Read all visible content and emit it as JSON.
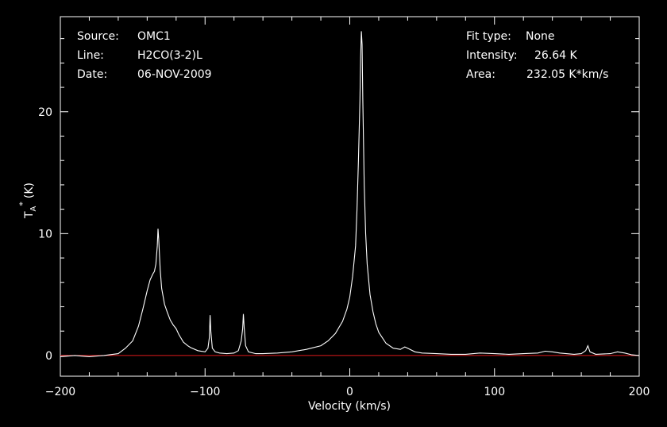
{
  "info": {
    "source_label": "Source:",
    "source_value": "OMC1",
    "line_label": "Line:",
    "line_value": "H2CO(3-2)L",
    "date_label": "Date:",
    "date_value": "06-NOV-2009",
    "fit_label": "Fit type:",
    "fit_value": "None",
    "intensity_label": "Intensity:",
    "intensity_value": "26.64 K",
    "area_label": "Area:",
    "area_value": "232.05 K*km/s"
  },
  "colors": {
    "background": "#000000",
    "axes": "#ffffff",
    "spectrum": "#ffffff",
    "baseline": "#e0191b"
  },
  "chart_data": {
    "type": "line",
    "xlabel": "Velocity (km/s)",
    "ylabel_main": "T",
    "ylabel_sub": "A",
    "ylabel_sup": "*",
    "ylabel_unit": "(K)",
    "xlim": [
      -200,
      200
    ],
    "ylim": [
      -1.7,
      27.8
    ],
    "x_ticks": [
      -200,
      -100,
      0,
      100,
      200
    ],
    "x_tick_labels": [
      "−200",
      "−100",
      "0",
      "100",
      "200"
    ],
    "y_ticks": [
      0,
      10,
      20
    ],
    "y_tick_labels": [
      "0",
      "10",
      "20"
    ],
    "grid": false,
    "series": [
      {
        "points": [
          [
            -200,
            -0.1
          ],
          [
            -190,
            0.0
          ],
          [
            -180,
            -0.1
          ],
          [
            -170,
            0.0
          ],
          [
            -160,
            0.15
          ],
          [
            -155,
            0.6
          ],
          [
            -150,
            1.2
          ],
          [
            -146,
            2.4
          ],
          [
            -143,
            3.8
          ],
          [
            -140,
            5.3
          ],
          [
            -138,
            6.2
          ],
          [
            -136,
            6.7
          ],
          [
            -135,
            6.9
          ],
          [
            -134,
            7.5
          ],
          [
            -133,
            9.0
          ],
          [
            -132.5,
            10.4
          ],
          [
            -132,
            9.5
          ],
          [
            -131,
            7.0
          ],
          [
            -130,
            5.5
          ],
          [
            -128,
            4.2
          ],
          [
            -126,
            3.5
          ],
          [
            -124,
            2.9
          ],
          [
            -122,
            2.5
          ],
          [
            -120,
            2.2
          ],
          [
            -118,
            1.7
          ],
          [
            -115,
            1.1
          ],
          [
            -112,
            0.8
          ],
          [
            -110,
            0.65
          ],
          [
            -105,
            0.4
          ],
          [
            -100,
            0.3
          ],
          [
            -98,
            0.6
          ],
          [
            -97,
            1.5
          ],
          [
            -96.5,
            3.3
          ],
          [
            -96,
            2.0
          ],
          [
            -95,
            0.6
          ],
          [
            -93,
            0.3
          ],
          [
            -90,
            0.2
          ],
          [
            -85,
            0.15
          ],
          [
            -80,
            0.2
          ],
          [
            -77,
            0.4
          ],
          [
            -75,
            1.2
          ],
          [
            -74,
            2.2
          ],
          [
            -73.5,
            3.4
          ],
          [
            -73,
            2.3
          ],
          [
            -72,
            0.8
          ],
          [
            -70,
            0.3
          ],
          [
            -65,
            0.15
          ],
          [
            -60,
            0.15
          ],
          [
            -50,
            0.2
          ],
          [
            -40,
            0.3
          ],
          [
            -30,
            0.5
          ],
          [
            -20,
            0.8
          ],
          [
            -15,
            1.2
          ],
          [
            -10,
            1.8
          ],
          [
            -5,
            2.8
          ],
          [
            -2,
            3.8
          ],
          [
            0,
            4.8
          ],
          [
            2,
            6.5
          ],
          [
            4,
            9.0
          ],
          [
            5,
            12.0
          ],
          [
            6,
            16.0
          ],
          [
            7,
            21.0
          ],
          [
            7.5,
            24.5
          ],
          [
            8,
            26.6
          ],
          [
            8.5,
            25.5
          ],
          [
            9,
            21.0
          ],
          [
            10,
            14.0
          ],
          [
            11,
            10.0
          ],
          [
            12,
            7.5
          ],
          [
            14,
            5.0
          ],
          [
            16,
            3.6
          ],
          [
            18,
            2.6
          ],
          [
            20,
            1.9
          ],
          [
            25,
            1.0
          ],
          [
            30,
            0.6
          ],
          [
            35,
            0.5
          ],
          [
            38,
            0.7
          ],
          [
            40,
            0.6
          ],
          [
            45,
            0.3
          ],
          [
            50,
            0.2
          ],
          [
            60,
            0.15
          ],
          [
            70,
            0.1
          ],
          [
            80,
            0.1
          ],
          [
            90,
            0.2
          ],
          [
            100,
            0.15
          ],
          [
            110,
            0.1
          ],
          [
            120,
            0.15
          ],
          [
            130,
            0.2
          ],
          [
            135,
            0.35
          ],
          [
            140,
            0.3
          ],
          [
            145,
            0.2
          ],
          [
            155,
            0.1
          ],
          [
            160,
            0.15
          ],
          [
            163,
            0.4
          ],
          [
            164.5,
            0.8
          ],
          [
            166,
            0.3
          ],
          [
            170,
            0.1
          ],
          [
            180,
            0.15
          ],
          [
            185,
            0.3
          ],
          [
            190,
            0.2
          ],
          [
            195,
            0.05
          ],
          [
            200,
            0.0
          ]
        ]
      }
    ],
    "baseline_y": 0
  }
}
